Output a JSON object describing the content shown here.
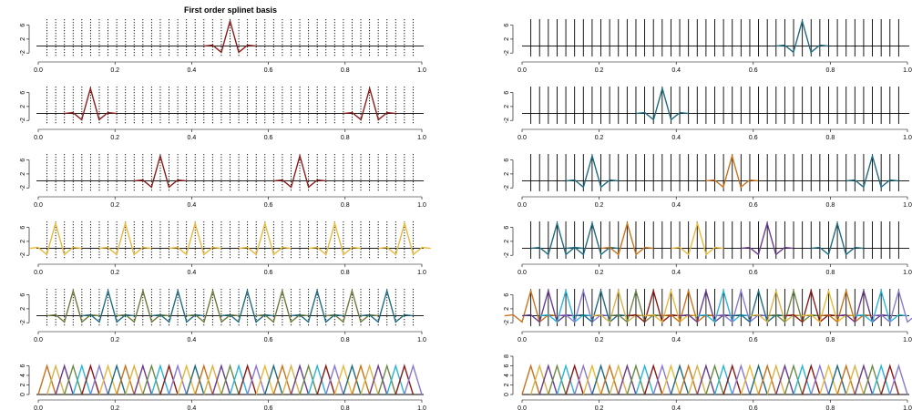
{
  "title": "First order splinet basis",
  "palette": {
    "dark_red": "#8b1a1a",
    "gold": "#e8b83a",
    "olive": "#6b7a3a",
    "teal": "#1f6b80",
    "orange": "#c8731e",
    "purple": "#6a3d8f",
    "cyan": "#2bb5d8",
    "lavender": "#8a7ad0",
    "mustard": "#d9b24a",
    "sage": "#6e8a4a",
    "knot_line": "#000000"
  },
  "chart_data": [
    {
      "type": "line",
      "panel": "left-1",
      "knots": "dotted",
      "xlim": [
        0,
        1
      ],
      "ylim": [
        -3,
        8
      ],
      "xticks": [
        "0.0",
        "0.2",
        "0.4",
        "0.6",
        "0.8",
        "1.0"
      ],
      "yticks": [
        "-2",
        "2",
        "6"
      ],
      "series": [
        {
          "color": "#8b1a1a",
          "peaks": [
            0.5
          ]
        }
      ]
    },
    {
      "type": "line",
      "panel": "left-2",
      "knots": "dotted",
      "xlim": [
        0,
        1
      ],
      "ylim": [
        -3,
        8
      ],
      "xticks": [
        "0.0",
        "0.2",
        "0.4",
        "0.6",
        "0.8",
        "1.0"
      ],
      "yticks": [
        "-2",
        "2",
        "6"
      ],
      "series": [
        {
          "color": "#8b1a1a",
          "peaks": [
            0.136,
            0.864
          ]
        }
      ]
    },
    {
      "type": "line",
      "panel": "left-3",
      "knots": "dotted",
      "xlim": [
        0,
        1
      ],
      "ylim": [
        -3,
        8
      ],
      "xticks": [
        "0.0",
        "0.2",
        "0.4",
        "0.6",
        "0.8",
        "1.0"
      ],
      "yticks": [
        "-2",
        "2",
        "6"
      ],
      "series": [
        {
          "color": "#8b1a1a",
          "peaks": [
            0.318,
            0.682
          ]
        }
      ]
    },
    {
      "type": "line",
      "panel": "left-4",
      "knots": "dotted",
      "xlim": [
        0,
        1
      ],
      "ylim": [
        -3,
        8
      ],
      "xticks": [
        "0.0",
        "0.2",
        "0.4",
        "0.6",
        "0.8",
        "1.0"
      ],
      "yticks": [
        "-2",
        "2",
        "6"
      ],
      "series": [
        {
          "color": "#e8b83a",
          "peaks": [
            0.045,
            0.227,
            0.409,
            0.591,
            0.773,
            0.955
          ]
        }
      ]
    },
    {
      "type": "line",
      "panel": "left-5",
      "knots": "dotted",
      "xlim": [
        0,
        1
      ],
      "ylim": [
        -3,
        8
      ],
      "xticks": [
        "0.0",
        "0.2",
        "0.4",
        "0.6",
        "0.8",
        "1.0"
      ],
      "yticks": [
        "-2",
        "2",
        "6"
      ],
      "series": [
        {
          "color": "#6b7a3a",
          "peaks": [
            0.091,
            0.273,
            0.455,
            0.636,
            0.818
          ]
        },
        {
          "color": "#1f6b80",
          "peaks": [
            0.182,
            0.364,
            0.545,
            0.727,
            0.909
          ]
        }
      ]
    },
    {
      "type": "line",
      "panel": "left-6",
      "knots": "none",
      "xlim": [
        0,
        1
      ],
      "ylim": [
        0,
        8
      ],
      "xticks": [
        "0.0",
        "0.2",
        "0.4",
        "0.6",
        "0.8",
        "1.0"
      ],
      "yticks": [
        "0",
        "2",
        "4",
        "6"
      ],
      "series": [
        {
          "color": "multi",
          "peaks": "all-knots"
        }
      ]
    },
    {
      "type": "line",
      "panel": "right-1",
      "knots": "solid",
      "xlim": [
        0,
        1
      ],
      "ylim": [
        -3,
        8
      ],
      "xticks": [
        "0.0",
        "0.2",
        "0.4",
        "0.6",
        "0.8",
        "1.0"
      ],
      "yticks": [
        "-2",
        "2",
        "6"
      ],
      "series": [
        {
          "color": "#1f6b80",
          "peaks": [
            0.727
          ]
        }
      ]
    },
    {
      "type": "line",
      "panel": "right-2",
      "knots": "solid",
      "xlim": [
        0,
        1
      ],
      "ylim": [
        -3,
        8
      ],
      "xticks": [
        "0.0",
        "0.2",
        "0.4",
        "0.6",
        "0.8",
        "1.0"
      ],
      "yticks": [
        "-2",
        "2",
        "6"
      ],
      "series": [
        {
          "color": "#1f6b80",
          "peaks": [
            0.364
          ]
        }
      ]
    },
    {
      "type": "line",
      "panel": "right-3",
      "knots": "solid",
      "xlim": [
        0,
        1
      ],
      "ylim": [
        -3,
        8
      ],
      "xticks": [
        "0.0",
        "0.2",
        "0.4",
        "0.6",
        "0.8",
        "1.0"
      ],
      "yticks": [
        "-2",
        "2",
        "6"
      ],
      "series": [
        {
          "color": "#1f6b80",
          "peaks": [
            0.182,
            0.909
          ]
        },
        {
          "color": "#c8731e",
          "peaks": [
            0.545
          ]
        }
      ]
    },
    {
      "type": "line",
      "panel": "right-4",
      "knots": "solid",
      "xlim": [
        0,
        1
      ],
      "ylim": [
        -3,
        8
      ],
      "xticks": [
        "0.0",
        "0.2",
        "0.4",
        "0.6",
        "0.8",
        "1.0"
      ],
      "yticks": [
        "-2",
        "2",
        "6"
      ],
      "series": [
        {
          "color": "#1f6b80",
          "peaks": [
            0.091,
            0.182,
            0.818
          ]
        },
        {
          "color": "#c8731e",
          "peaks": [
            0.273
          ]
        },
        {
          "color": "#e8b83a",
          "peaks": [
            0.455
          ]
        },
        {
          "color": "#6a3d8f",
          "peaks": [
            0.636
          ]
        }
      ]
    },
    {
      "type": "line",
      "panel": "right-5",
      "knots": "solid",
      "xlim": [
        0,
        1
      ],
      "ylim": [
        -3,
        8
      ],
      "xticks": [
        "0.0",
        "0.2",
        "0.4",
        "0.6",
        "0.8",
        "1.0"
      ],
      "yticks": [
        "-2",
        "2",
        "6"
      ],
      "series": [
        {
          "color": "multi",
          "peaks": "every-other-knot"
        }
      ]
    },
    {
      "type": "line",
      "panel": "right-6",
      "knots": "none",
      "xlim": [
        0,
        1
      ],
      "ylim": [
        0,
        8
      ],
      "xticks": [
        "0.0",
        "0.2",
        "0.4",
        "0.6",
        "0.8",
        "1.0"
      ],
      "yticks": [
        "0",
        "2",
        "4",
        "6",
        "8"
      ],
      "series": [
        {
          "color": "multi",
          "peaks": "all-knots"
        }
      ]
    }
  ]
}
